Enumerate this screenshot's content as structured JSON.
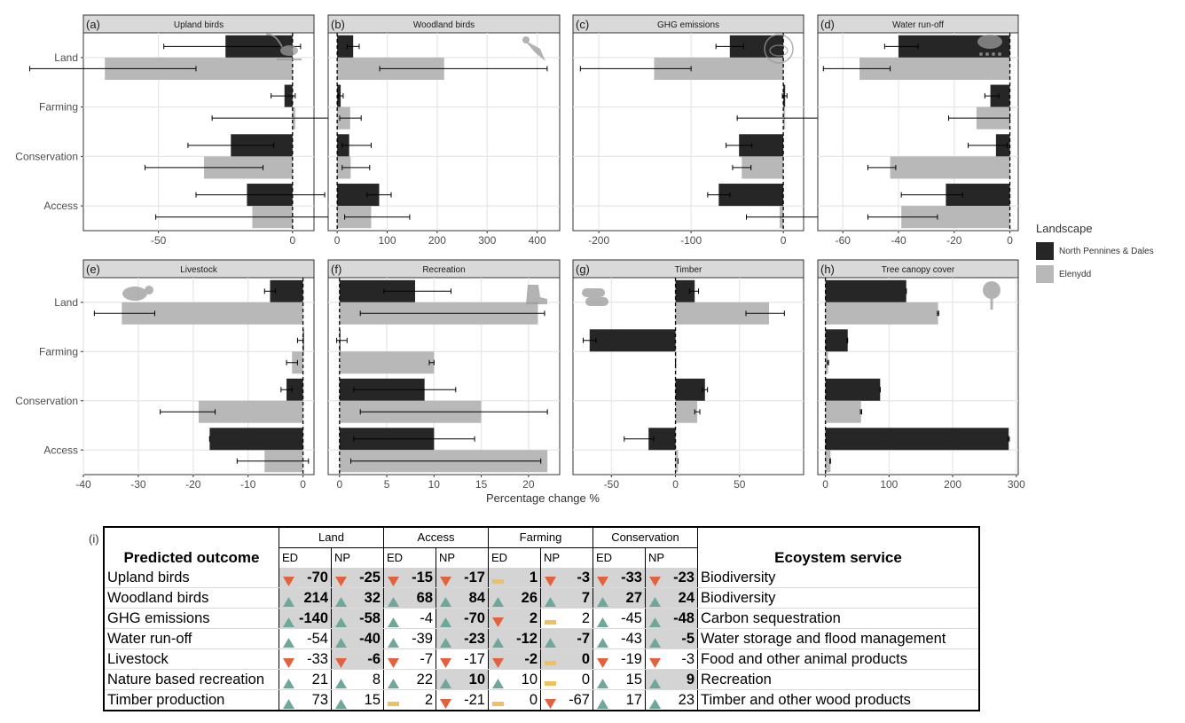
{
  "colors": {
    "np": "#262626",
    "ed": "#b8b8b8",
    "panel_bg": "#ebebeb",
    "strip_bg": "#d9d9d9",
    "up": "#6fa89a",
    "down": "#e2623f",
    "flat": "#f0c060"
  },
  "legend": {
    "title": "Landscape",
    "items": [
      {
        "label": "North Pennines & Dales",
        "color": "#262626"
      },
      {
        "label": "Elenydd",
        "color": "#b8b8b8"
      }
    ]
  },
  "x_axis_title": "Percentage change %",
  "panel_i_label": "(i)",
  "chart_data": [
    {
      "type": "bar",
      "panel": "(a)",
      "title": "Upland birds",
      "icon": "curlew-icon",
      "categories": [
        "Land",
        "Farming",
        "Conservation",
        "Access"
      ],
      "xlim": [
        -78,
        8
      ],
      "xticks": [
        -50,
        0
      ],
      "series": [
        {
          "name": "North Pennines & Dales",
          "values": [
            -25,
            -3,
            -23,
            -17
          ],
          "err_low": [
            -48,
            -8,
            -39,
            -36
          ],
          "err_high": [
            3,
            1,
            -7,
            12
          ]
        },
        {
          "name": "Elenydd",
          "values": [
            -70,
            1,
            -33,
            -15
          ],
          "err_low": [
            -98,
            -30,
            -55,
            -51
          ],
          "err_high": [
            -36,
            43,
            -11,
            14
          ]
        }
      ]
    },
    {
      "type": "bar",
      "panel": "(b)",
      "title": "Woodland birds",
      "icon": "woodpecker-icon",
      "categories": [
        "Land",
        "Farming",
        "Conservation",
        "Access"
      ],
      "xlim": [
        -18,
        445
      ],
      "xticks": [
        0,
        100,
        200,
        300,
        400
      ],
      "series": [
        {
          "name": "North Pennines & Dales",
          "values": [
            32,
            7,
            24,
            84
          ],
          "err_low": [
            20,
            2,
            10,
            60
          ],
          "err_high": [
            44,
            12,
            68,
            108
          ]
        },
        {
          "name": "Elenydd",
          "values": [
            214,
            26,
            27,
            68
          ],
          "err_low": [
            85,
            5,
            10,
            15
          ],
          "err_high": [
            420,
            48,
            65,
            145
          ]
        }
      ]
    },
    {
      "type": "bar",
      "panel": "(c)",
      "title": "GHG emissions",
      "icon": "co2-cloud-icon",
      "categories": [
        "Land",
        "Farming",
        "Conservation",
        "Access"
      ],
      "xlim": [
        -228,
        22
      ],
      "xticks": [
        -200,
        -100,
        0
      ],
      "series": [
        {
          "name": "North Pennines & Dales",
          "values": [
            -58,
            2,
            -48,
            -70
          ],
          "err_low": [
            -73,
            -1,
            -62,
            -82
          ],
          "err_high": [
            -43,
            4,
            -34,
            -58
          ]
        },
        {
          "name": "Elenydd",
          "values": [
            -140,
            2,
            -45,
            -4
          ],
          "err_low": [
            -220,
            -50,
            -55,
            -40
          ],
          "err_high": [
            -100,
            55,
            -35,
            42
          ]
        }
      ]
    },
    {
      "type": "bar",
      "panel": "(d)",
      "title": "Water run-off",
      "icon": "rain-cloud-icon",
      "categories": [
        "Land",
        "Farming",
        "Conservation",
        "Access"
      ],
      "xlim": [
        -69,
        3
      ],
      "xticks": [
        -60,
        -40,
        -20,
        0
      ],
      "series": [
        {
          "name": "North Pennines & Dales",
          "values": [
            -40,
            -7,
            -5,
            -23
          ],
          "err_low": [
            -45,
            -9,
            -15,
            -39
          ],
          "err_high": [
            -33,
            -4,
            -1,
            -17
          ]
        },
        {
          "name": "Elenydd",
          "values": [
            -54,
            -12,
            -43,
            -39
          ],
          "err_low": [
            -67,
            -22,
            -51,
            -51
          ],
          "err_high": [
            -43,
            0,
            -41,
            -26
          ]
        }
      ]
    },
    {
      "type": "bar",
      "panel": "(e)",
      "title": "Livestock",
      "icon": "sheep-icon",
      "categories": [
        "Land",
        "Farming",
        "Conservation",
        "Access"
      ],
      "xlim": [
        -40,
        2
      ],
      "xticks": [
        -40,
        -30,
        -20,
        -10,
        0
      ],
      "series": [
        {
          "name": "North Pennines & Dales",
          "values": [
            -6,
            0,
            -3,
            -17
          ],
          "err_low": [
            -7,
            -1,
            -4,
            -17
          ],
          "err_high": [
            -5,
            0,
            -2,
            -17
          ]
        },
        {
          "name": "Elenydd",
          "values": [
            -33,
            -2,
            -19,
            -7
          ],
          "err_low": [
            -38,
            -3,
            -26,
            -12
          ],
          "err_high": [
            -27,
            -1,
            -16,
            1
          ]
        }
      ]
    },
    {
      "type": "bar",
      "panel": "(f)",
      "title": "Recreation",
      "icon": "hiking-boot-icon",
      "categories": [
        "Land",
        "Farming",
        "Conservation",
        "Access"
      ],
      "xlim": [
        -1.2,
        23.3
      ],
      "xticks": [
        0,
        5,
        10,
        15,
        20
      ],
      "series": [
        {
          "name": "North Pennines & Dales",
          "values": [
            8,
            0,
            9,
            10
          ],
          "err_low": [
            4.7,
            -0.3,
            1.5,
            1.5
          ],
          "err_high": [
            11.8,
            0.8,
            12.3,
            14.3
          ]
        },
        {
          "name": "Elenydd",
          "values": [
            21,
            10,
            15,
            22
          ],
          "err_low": [
            2.2,
            9.5,
            2.2,
            1.2
          ],
          "err_high": [
            21.7,
            10,
            22,
            21.3
          ]
        }
      ]
    },
    {
      "type": "bar",
      "panel": "(g)",
      "title": "Timber",
      "icon": "log-pile-icon",
      "categories": [
        "Land",
        "Farming",
        "Conservation",
        "Access"
      ],
      "xlim": [
        -80,
        100
      ],
      "xticks": [
        -50,
        0,
        50
      ],
      "series": [
        {
          "name": "North Pennines & Dales",
          "values": [
            15,
            -67,
            23,
            -21
          ],
          "err_low": [
            11,
            -72,
            21,
            -40
          ],
          "err_high": [
            18,
            -62,
            25,
            -17
          ]
        },
        {
          "name": "Elenydd",
          "values": [
            73,
            0,
            17,
            2
          ],
          "err_low": [
            55,
            0,
            15,
            2
          ],
          "err_high": [
            85,
            0,
            19,
            2
          ]
        }
      ]
    },
    {
      "type": "bar",
      "panel": "(h)",
      "title": "Tree canopy cover",
      "icon": "tree-icon",
      "categories": [
        "Land",
        "Farming",
        "Conservation",
        "Access"
      ],
      "xlim": [
        -12,
        303
      ],
      "xticks": [
        0,
        100,
        200,
        300
      ],
      "series": [
        {
          "name": "North Pennines & Dales",
          "values": [
            127,
            35,
            86,
            288
          ],
          "err_low": [
            127,
            34,
            86,
            287
          ],
          "err_high": [
            127,
            35,
            86,
            289
          ]
        },
        {
          "name": "Elenydd",
          "values": [
            177,
            4,
            56,
            8
          ],
          "err_low": [
            176,
            3,
            55,
            7
          ],
          "err_high": [
            178,
            5,
            57,
            8
          ]
        }
      ]
    }
  ],
  "table": {
    "header_outcome": "Predicted outcome",
    "header_service": "Ecoystem service",
    "groups": [
      "Land",
      "Access",
      "Farming",
      "Conservation"
    ],
    "codes": [
      "ED",
      "NP"
    ],
    "rows": [
      {
        "outcome": "Upland birds",
        "service": "Biodiversity",
        "cells": [
          {
            "v": "-70",
            "d": "down",
            "b": true,
            "s": true
          },
          {
            "v": "-25",
            "d": "down",
            "b": true,
            "s": true
          },
          {
            "v": "-15",
            "d": "down",
            "b": true,
            "s": true
          },
          {
            "v": "-17",
            "d": "down",
            "b": true,
            "s": true
          },
          {
            "v": "1",
            "d": "flat",
            "b": true,
            "s": true
          },
          {
            "v": "-3",
            "d": "down",
            "b": true,
            "s": true
          },
          {
            "v": "-33",
            "d": "down",
            "b": true,
            "s": true
          },
          {
            "v": "-23",
            "d": "down",
            "b": true,
            "s": true
          }
        ]
      },
      {
        "outcome": "Woodland birds",
        "service": "Biodiversity",
        "cells": [
          {
            "v": "214",
            "d": "up",
            "b": true,
            "s": true
          },
          {
            "v": "32",
            "d": "up",
            "b": true,
            "s": true
          },
          {
            "v": "68",
            "d": "up",
            "b": true,
            "s": true
          },
          {
            "v": "84",
            "d": "up",
            "b": true,
            "s": true
          },
          {
            "v": "26",
            "d": "up",
            "b": true,
            "s": true
          },
          {
            "v": "7",
            "d": "up",
            "b": true,
            "s": true
          },
          {
            "v": "27",
            "d": "up",
            "b": true,
            "s": true
          },
          {
            "v": "24",
            "d": "up",
            "b": true,
            "s": true
          }
        ]
      },
      {
        "outcome": "GHG emissions",
        "service": "Carbon sequestration",
        "cells": [
          {
            "v": "-140",
            "d": "up",
            "b": true,
            "s": true
          },
          {
            "v": "-58",
            "d": "up",
            "b": true,
            "s": true
          },
          {
            "v": "-4",
            "d": "up",
            "b": false,
            "s": false
          },
          {
            "v": "-70",
            "d": "up",
            "b": true,
            "s": true
          },
          {
            "v": "2",
            "d": "down",
            "b": true,
            "s": true
          },
          {
            "v": "2",
            "d": "flat",
            "b": false,
            "s": false
          },
          {
            "v": "-45",
            "d": "up",
            "b": false,
            "s": false
          },
          {
            "v": "-48",
            "d": "up",
            "b": true,
            "s": true
          }
        ]
      },
      {
        "outcome": "Water run-off",
        "service": "Water storage and flood management",
        "cells": [
          {
            "v": "-54",
            "d": "up",
            "b": false,
            "s": false
          },
          {
            "v": "-40",
            "d": "up",
            "b": true,
            "s": true
          },
          {
            "v": "-39",
            "d": "up",
            "b": false,
            "s": false
          },
          {
            "v": "-23",
            "d": "up",
            "b": true,
            "s": true
          },
          {
            "v": "-12",
            "d": "up",
            "b": true,
            "s": true
          },
          {
            "v": "-7",
            "d": "up",
            "b": true,
            "s": true
          },
          {
            "v": "-43",
            "d": "up",
            "b": false,
            "s": false
          },
          {
            "v": "-5",
            "d": "up",
            "b": true,
            "s": true
          }
        ]
      },
      {
        "outcome": "Livestock",
        "service": "Food and other animal products",
        "cells": [
          {
            "v": "-33",
            "d": "down",
            "b": false,
            "s": false
          },
          {
            "v": "-6",
            "d": "down",
            "b": true,
            "s": true
          },
          {
            "v": "-7",
            "d": "down",
            "b": false,
            "s": false
          },
          {
            "v": "-17",
            "d": "down",
            "b": false,
            "s": false
          },
          {
            "v": "-2",
            "d": "down",
            "b": true,
            "s": true
          },
          {
            "v": "0",
            "d": "flat",
            "b": true,
            "s": true
          },
          {
            "v": "-19",
            "d": "down",
            "b": false,
            "s": false
          },
          {
            "v": "-3",
            "d": "down",
            "b": false,
            "s": false
          }
        ]
      },
      {
        "outcome": "Nature based recreation",
        "service": "Recreation",
        "cells": [
          {
            "v": "21",
            "d": "up",
            "b": false,
            "s": false
          },
          {
            "v": "8",
            "d": "up",
            "b": false,
            "s": false
          },
          {
            "v": "22",
            "d": "up",
            "b": false,
            "s": false
          },
          {
            "v": "10",
            "d": "up",
            "b": true,
            "s": true
          },
          {
            "v": "10",
            "d": "up",
            "b": false,
            "s": false
          },
          {
            "v": "0",
            "d": "flat",
            "b": false,
            "s": false
          },
          {
            "v": "15",
            "d": "up",
            "b": false,
            "s": false
          },
          {
            "v": "9",
            "d": "up",
            "b": true,
            "s": true
          }
        ]
      },
      {
        "outcome": "Timber production",
        "service": "Timber and other wood products",
        "cells": [
          {
            "v": "73",
            "d": "up",
            "b": false,
            "s": false
          },
          {
            "v": "15",
            "d": "up",
            "b": false,
            "s": false
          },
          {
            "v": "2",
            "d": "flat",
            "b": false,
            "s": false
          },
          {
            "v": "-21",
            "d": "down",
            "b": false,
            "s": false
          },
          {
            "v": "0",
            "d": "flat",
            "b": false,
            "s": false
          },
          {
            "v": "-67",
            "d": "down",
            "b": false,
            "s": false
          },
          {
            "v": "17",
            "d": "up",
            "b": false,
            "s": false
          },
          {
            "v": "23",
            "d": "up",
            "b": false,
            "s": false
          }
        ]
      }
    ]
  }
}
